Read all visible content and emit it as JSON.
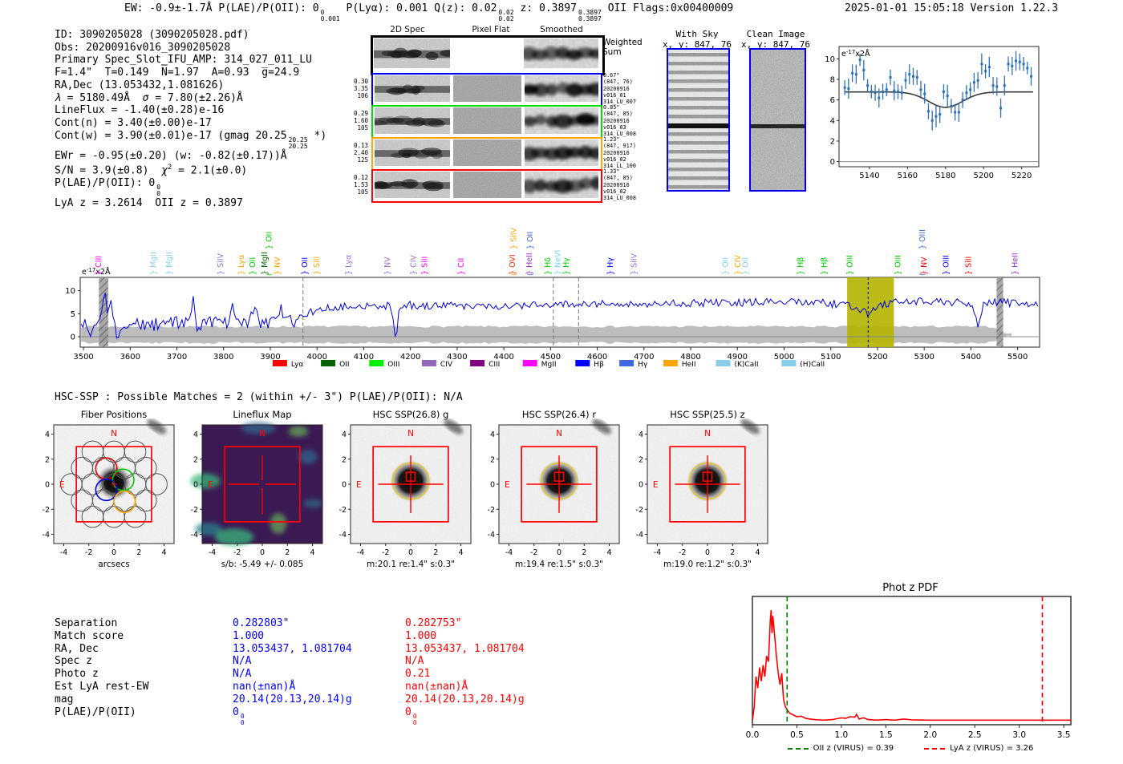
{
  "header": {
    "ew": "EW: -0.9±-1.7Å",
    "plae_label": "P(LAE)/P(OII): 0",
    "plae_stack": [
      "0",
      "0.001"
    ],
    "plya": "P(Lyα): 0.001",
    "qz_label": "Q(z): 0.02",
    "qz_stack": [
      "0.02",
      "0.02"
    ],
    "z_label": "z: 0.3897",
    "z_stack": [
      "0.3897",
      "0.3897"
    ],
    "z_suffix": "OII",
    "flags": "Flags:0x00400009",
    "datetime": "2025-01-01 15:05:18",
    "version": "Version 1.22.3"
  },
  "info": {
    "lines": [
      [
        {
          "t": "ID: 3090205028 (3090205028.pdf)"
        }
      ],
      [
        {
          "t": "Obs: 20200916v016_3090205028"
        }
      ],
      [
        {
          "t": "Primary Spec_Slot_IFU_AMP: 314_027_011_LU"
        }
      ],
      [
        {
          "t": "F=1.4\"  T=0.149  N̅=1.97  A=0.93  g̅=24.9"
        }
      ],
      [
        {
          "t": "RA,Dec (13.053432,1.081626)"
        }
      ],
      [
        {
          "i": "λ"
        },
        {
          "t": " = 5180.49Å  "
        },
        {
          "i": "σ"
        },
        {
          "t": " = 7.80(±2.26)Å"
        }
      ],
      [
        {
          "t": "LineFlux = -1.40(±0.28)e-16"
        }
      ],
      [
        {
          "t": "Cont(n) = 3.40(±0.00)e-17"
        }
      ],
      [
        {
          "t": "Cont(w) = 3.90(±0.01)e-17 (gmag 20.25"
        },
        {
          "s": [
            "20.25",
            "20.25"
          ]
        },
        {
          "t": " *)"
        }
      ],
      [
        {
          "t": "EWr = -0.95(±0.20) (w: -0.82(±0.17))Å"
        }
      ],
      [
        {
          "t": "S/N = 3.9(±0.8)  "
        },
        {
          "i": "χ"
        },
        {
          "sup": "2"
        },
        {
          "t": " = 2.1(±0.0)"
        }
      ],
      [
        {
          "t": "P(LAE)/P(OII): 0"
        },
        {
          "s": [
            "0",
            "0"
          ]
        }
      ],
      [
        {
          "t": "LyA z = 3.2614  OII z = 0.3897"
        }
      ]
    ]
  },
  "spec2d": {
    "col_headers": [
      "2D Spec",
      "Pixel Flat",
      "Smoothed"
    ],
    "weighted_sum_label": [
      "Weighted",
      "Sum"
    ],
    "rows": [
      {
        "color": "#0000ff",
        "left": [
          "0.30",
          "3.35",
          "106"
        ],
        "right": [
          "0.67\"",
          "(847, 76)",
          "20200916",
          "v016_01",
          "314_LU_007"
        ]
      },
      {
        "color": "#00dd00",
        "left": [
          "0.29",
          "1.60",
          "105"
        ],
        "right": [
          "0.85\"",
          "(847, 85)",
          "20200916",
          "v016_03",
          "314_LU_008"
        ]
      },
      {
        "color": "#ffa500",
        "left": [
          "0.13",
          "2.40",
          "125"
        ],
        "right": [
          "1.23\"",
          "(847, 917)",
          "20200916",
          "v016_02",
          "314_LL_100"
        ]
      },
      {
        "color": "#ff0000",
        "left": [
          "0.12",
          "1.53",
          "105"
        ],
        "right": [
          "1.33\"",
          "(847, 85)",
          "20200916",
          "v016_02",
          "314_LU_008"
        ]
      }
    ]
  },
  "withsky": {
    "title": "With Sky",
    "subtitle": "x, y: 847, 76",
    "border": "#0000ee"
  },
  "clean": {
    "title": "Clean Image",
    "subtitle": "x, y: 847, 76",
    "border": "#0000ee"
  },
  "hsc_header": "HSC-SSP : Possible Matches = 2 (within +/- 3\")  P(LAE)/P(OII): N/A",
  "cutouts": [
    {
      "title": "Fiber Positions",
      "xlabel": "arcsecs",
      "kind": "fiber"
    },
    {
      "title": "Lineflux Map",
      "xlabel": "s/b: -5.49 +/- 0.085",
      "kind": "lineflux"
    },
    {
      "title": "HSC SSP(26.8) g",
      "xlabel": "m:20.1 re:1.4\" s:0.3\"",
      "kind": "img"
    },
    {
      "title": "HSC SSP(26.4) r",
      "xlabel": "m:19.4 re:1.5\" s:0.3\"",
      "kind": "img"
    },
    {
      "title": "HSC SSP(25.5) z",
      "xlabel": "m:19.0 re:1.2\" s:0.3\"",
      "kind": "img"
    }
  ],
  "cutout_axis": {
    "ticks": [
      "-4",
      "-2",
      "0",
      "2",
      "4"
    ],
    "north": "N",
    "east": "E"
  },
  "match_table": {
    "labels": [
      "Separation",
      "Match score",
      "RA, Dec",
      "Spec z",
      "Photo z",
      "Est LyA rest-EW",
      "mag",
      "P(LAE)/P(OII)"
    ],
    "columns": [
      {
        "color": "#0000ff",
        "values": [
          "0.282803\"",
          "1.000",
          "13.053437, 1.081704",
          "N/A",
          "N/A",
          "nan(±nan)Å",
          "20.14(20.13,20.14)g",
          {
            "base": "0",
            "stack": [
              "0",
              "0"
            ]
          }
        ]
      },
      {
        "color": "#ff0000",
        "values": [
          "0.282753\"",
          "1.000",
          "13.053437, 1.081704",
          "N/A",
          "0.21",
          "nan(±nan)Å",
          "20.14(20.13,20.14)g",
          {
            "base": "0",
            "stack": [
              "0",
              "0"
            ]
          }
        ]
      }
    ]
  },
  "chart_data": [
    {
      "id": "emission_line_fit_zoom",
      "type": "scatter",
      "unit_label": {
        "prefix": "e",
        "sup": "-17",
        "suffix": "x2Å"
      },
      "x": [
        5127,
        5129,
        5131,
        5133,
        5135,
        5137,
        5139,
        5141,
        5143,
        5145,
        5147,
        5149,
        5151,
        5153,
        5155,
        5157,
        5159,
        5161,
        5163,
        5165,
        5167,
        5169,
        5171,
        5173,
        5175,
        5177,
        5179,
        5181,
        5183,
        5185,
        5187,
        5189,
        5191,
        5193,
        5195,
        5197,
        5199,
        5201,
        5203,
        5205,
        5207,
        5209,
        5211,
        5213,
        5215,
        5217,
        5219,
        5221,
        5223,
        5225
      ],
      "y": [
        7.2,
        7.1,
        8.6,
        8.5,
        9.9,
        8.9,
        7.4,
        6.8,
        6.7,
        6.2,
        6.8,
        7.0,
        8.2,
        6.9,
        6.8,
        6.7,
        7.9,
        8.5,
        8.3,
        8.2,
        7.0,
        6.6,
        4.9,
        4.0,
        4.4,
        4.6,
        6.8,
        6.4,
        5.4,
        4.8,
        4.8,
        6.0,
        6.7,
        7.0,
        7.7,
        7.9,
        9.5,
        8.8,
        9.2,
        7.4,
        7.3,
        5.2,
        7.4,
        9.5,
        9.3,
        9.8,
        9.7,
        9.5,
        9.1,
        8.3
      ],
      "yerr_typical": 0.8,
      "fit": {
        "shape": "gaussian_absorption",
        "baseline": 6.78,
        "amplitude": -1.5,
        "center": 5180,
        "sigma": 9
      },
      "xticks": [
        5140,
        5160,
        5180,
        5200,
        5220
      ],
      "yticks": [
        0,
        2,
        4,
        6,
        8,
        10
      ],
      "xlim": [
        5124,
        5229
      ],
      "ylim": [
        -0.5,
        11.2
      ],
      "marker_color": "#2e72b5",
      "fit_color": "#3a3a3a"
    },
    {
      "id": "full_spectrum",
      "type": "line",
      "unit_label": {
        "prefix": "e",
        "sup": "-17",
        "suffix": "x2Å"
      },
      "xlim": [
        3493,
        5547
      ],
      "ylim": [
        -2.26,
        12.9
      ],
      "xticks": [
        3500,
        3600,
        3700,
        3800,
        3900,
        4000,
        4100,
        4200,
        4300,
        4400,
        4500,
        4600,
        4700,
        4800,
        4900,
        5000,
        5100,
        5200,
        5300,
        5400,
        5500
      ],
      "yticks": [
        0,
        5,
        10
      ],
      "line_color": "#0000dd",
      "continuum_anchors": [
        [
          3490,
          2.6
        ],
        [
          3550,
          3.2
        ],
        [
          3600,
          2.8
        ],
        [
          3650,
          2.6
        ],
        [
          3700,
          3.0
        ],
        [
          3750,
          2.8
        ],
        [
          3800,
          3.2
        ],
        [
          3850,
          3.4
        ],
        [
          3900,
          3.2
        ],
        [
          3950,
          3.4
        ],
        [
          3980,
          5.0
        ],
        [
          4010,
          6.2
        ],
        [
          4050,
          6.6
        ],
        [
          4100,
          6.8
        ],
        [
          4150,
          6.7
        ],
        [
          4200,
          6.9
        ],
        [
          4250,
          6.6
        ],
        [
          4300,
          6.8
        ],
        [
          4350,
          6.6
        ],
        [
          4400,
          6.7
        ],
        [
          4450,
          6.9
        ],
        [
          4500,
          6.8
        ],
        [
          4550,
          7.0
        ],
        [
          4600,
          7.2
        ],
        [
          4650,
          7.0
        ],
        [
          4700,
          7.2
        ],
        [
          4750,
          7.4
        ],
        [
          4800,
          7.3
        ],
        [
          4850,
          7.5
        ],
        [
          4900,
          7.4
        ],
        [
          4950,
          7.6
        ],
        [
          5000,
          7.5
        ],
        [
          5050,
          7.6
        ],
        [
          5100,
          7.2
        ],
        [
          5140,
          6.8
        ],
        [
          5160,
          5.8
        ],
        [
          5180,
          5.2
        ],
        [
          5200,
          6.4
        ],
        [
          5230,
          7.4
        ],
        [
          5260,
          7.6
        ],
        [
          5300,
          7.8
        ],
        [
          5340,
          7.6
        ],
        [
          5380,
          7.4
        ],
        [
          5400,
          6.8
        ],
        [
          5415,
          5.4
        ],
        [
          5430,
          7.0
        ],
        [
          5460,
          7.6
        ],
        [
          5500,
          7.2
        ],
        [
          5540,
          7.3
        ]
      ],
      "noise_amplitude": {
        "blue_of_3960": 1.4,
        "red_of_3960": 0.85
      },
      "spikes": [
        [
          3513,
          -2.5
        ],
        [
          3545,
          5.6
        ],
        [
          3559,
          3.8
        ],
        [
          3573,
          -2.6
        ],
        [
          3735,
          5.8
        ],
        [
          3742,
          -3.2
        ],
        [
          3820,
          3.4
        ],
        [
          3866,
          3.0
        ],
        [
          3921,
          3.1
        ],
        [
          4168,
          -7.2
        ],
        [
          5415,
          -3.0
        ]
      ],
      "error_band": {
        "center": 0.45,
        "half_height": 1.65,
        "x_end": 5487,
        "color": "#bdbdbd"
      },
      "highlight_band": {
        "x0": 5135,
        "x1": 5235,
        "color": "#b3b300",
        "center_line": 5180
      },
      "hatched_bands": [
        [
          3533,
          3553
        ],
        [
          5455,
          5469
        ]
      ],
      "dashed_vlines": [
        3970,
        4506,
        4560
      ],
      "emission_labels": [
        {
          "name": "CIII",
          "wave": 3538,
          "color": "#ff00ff",
          "tier": 0
        },
        {
          "name": "MgII",
          "wave": 3655,
          "color": "#87ceeb",
          "tier": 0
        },
        {
          "name": "MgII",
          "wave": 3689,
          "color": "#87ceeb",
          "tier": 0
        },
        {
          "name": "SiIV",
          "wave": 3799,
          "color": "#9370db",
          "tier": 0
        },
        {
          "name": "Lyα",
          "wave": 3843,
          "color": "#ffa500",
          "tier": 0
        },
        {
          "name": "OII",
          "wave": 3867,
          "color": "#00cc00",
          "tier": 0
        },
        {
          "name": "MgII",
          "wave": 3893,
          "color": "#006400",
          "tier": 0
        },
        {
          "name": "OII",
          "wave": 3903,
          "color": "#00cc00",
          "tier": 1
        },
        {
          "name": "NV",
          "wave": 3921,
          "color": "#ffa500",
          "tier": 0
        },
        {
          "name": "OII",
          "wave": 3979,
          "color": "#0000ff",
          "tier": 0
        },
        {
          "name": "SiII",
          "wave": 4005,
          "color": "#ffa500",
          "tier": 0
        },
        {
          "name": "Lyα",
          "wave": 4073,
          "color": "#9370db",
          "tier": 0
        },
        {
          "name": "NV",
          "wave": 4156,
          "color": "#9370db",
          "tier": 0
        },
        {
          "name": "CIV",
          "wave": 4212,
          "color": "#9370db",
          "tier": 0
        },
        {
          "name": "SiII",
          "wave": 4236,
          "color": "#ff00ff",
          "tier": 0
        },
        {
          "name": "CII",
          "wave": 4314,
          "color": "#ff00ff",
          "tier": 0
        },
        {
          "name": "OVI",
          "wave": 4424,
          "color": "#ff3300",
          "tier": 0
        },
        {
          "name": "SiIV",
          "wave": 4426,
          "color": "#ffa500",
          "tier": 1
        },
        {
          "name": "HeII",
          "wave": 4460,
          "color": "#9932cc",
          "tier": 0
        },
        {
          "name": "OII",
          "wave": 4462,
          "color": "#4169e1",
          "tier": 1
        },
        {
          "name": "Hδ",
          "wave": 4499,
          "color": "#00cc00",
          "tier": 0
        },
        {
          "name": "NeVI",
          "wave": 4521,
          "color": "#76d6e8",
          "tier": 0
        },
        {
          "name": "Hγ",
          "wave": 4539,
          "color": "#00cc00",
          "tier": 0
        },
        {
          "name": "Hγ",
          "wave": 4633,
          "color": "#0000ff",
          "tier": 0
        },
        {
          "name": "SiIV",
          "wave": 4684,
          "color": "#9370db",
          "tier": 0
        },
        {
          "name": "OII",
          "wave": 4880,
          "color": "#87ceeb",
          "tier": 0
        },
        {
          "name": "CIV",
          "wave": 4906,
          "color": "#ffa500",
          "tier": 0
        },
        {
          "name": "OII",
          "wave": 4923,
          "color": "#87ceeb",
          "tier": 0
        },
        {
          "name": "Hβ",
          "wave": 5040,
          "color": "#00cc00",
          "tier": 0
        },
        {
          "name": "Hβ",
          "wave": 5091,
          "color": "#00cc00",
          "tier": 0
        },
        {
          "name": "OIII",
          "wave": 5146,
          "color": "#00cc00",
          "tier": 0
        },
        {
          "name": "OIII",
          "wave": 5249,
          "color": "#00cc00",
          "tier": 0
        },
        {
          "name": "OIII",
          "wave": 5301,
          "color": "#4169e1",
          "tier": 1
        },
        {
          "name": "NV",
          "wave": 5305,
          "color": "#ff0000",
          "tier": 0
        },
        {
          "name": "OIII",
          "wave": 5352,
          "color": "#0000ff",
          "tier": 0
        },
        {
          "name": "SiII",
          "wave": 5400,
          "color": "#ff0000",
          "tier": 0
        },
        {
          "name": "HeII",
          "wave": 5500,
          "color": "#9932cc",
          "tier": 0
        }
      ],
      "legend": [
        {
          "label": "Lyα",
          "color": "#ff0000"
        },
        {
          "label": "OII",
          "color": "#006400"
        },
        {
          "label": "OIII",
          "color": "#00ee00"
        },
        {
          "label": "CIV",
          "color": "#9467bd"
        },
        {
          "label": "CIII",
          "color": "#800080"
        },
        {
          "label": "MgII",
          "color": "#ff00ff"
        },
        {
          "label": "Hβ",
          "color": "#0000ff"
        },
        {
          "label": "Hγ",
          "color": "#4169e1"
        },
        {
          "label": "HeII",
          "color": "#ffa500"
        },
        {
          "label": "(K)CaII",
          "color": "#87ceeb"
        },
        {
          "label": "(H)CaII",
          "color": "#87ceeb"
        }
      ]
    },
    {
      "id": "phot_z_pdf",
      "type": "line",
      "title": "Phot z PDF",
      "x": [
        0.0,
        0.02,
        0.04,
        0.06,
        0.08,
        0.1,
        0.12,
        0.14,
        0.16,
        0.18,
        0.2,
        0.21,
        0.22,
        0.23,
        0.25,
        0.27,
        0.29,
        0.31,
        0.33,
        0.35,
        0.37,
        0.39,
        0.42,
        0.46,
        0.5,
        0.55,
        0.6,
        0.65,
        0.7,
        0.8,
        0.9,
        1.0,
        1.05,
        1.1,
        1.15,
        1.17,
        1.2,
        1.25,
        1.3,
        1.4,
        1.5,
        1.6,
        1.7,
        1.8,
        2.0,
        2.5,
        3.0,
        3.26,
        3.58
      ],
      "y": [
        0.04,
        0.15,
        0.42,
        0.32,
        0.5,
        0.38,
        0.52,
        0.42,
        0.6,
        0.55,
        0.9,
        1.0,
        0.8,
        0.95,
        0.78,
        0.6,
        0.45,
        0.35,
        0.45,
        0.22,
        0.16,
        0.13,
        0.1,
        0.085,
        0.07,
        0.075,
        0.055,
        0.05,
        0.045,
        0.04,
        0.045,
        0.06,
        0.055,
        0.07,
        0.065,
        0.09,
        0.05,
        0.06,
        0.045,
        0.04,
        0.045,
        0.04,
        0.05,
        0.042,
        0.04,
        0.04,
        0.04,
        0.04,
        0.04
      ],
      "xticks": [
        0.0,
        0.5,
        1.0,
        1.5,
        2.0,
        2.5,
        3.0,
        3.5
      ],
      "xlim": [
        0,
        3.58
      ],
      "ylim": [
        0,
        1.12
      ],
      "line_color": "#ff0000",
      "vlines": [
        {
          "x": 0.39,
          "color": "#008000",
          "label": "OII z (VIRUS) = 0.39"
        },
        {
          "x": 3.26,
          "color": "#ff0000",
          "label": "LyA z (VIRUS) = 3.26"
        }
      ]
    }
  ]
}
